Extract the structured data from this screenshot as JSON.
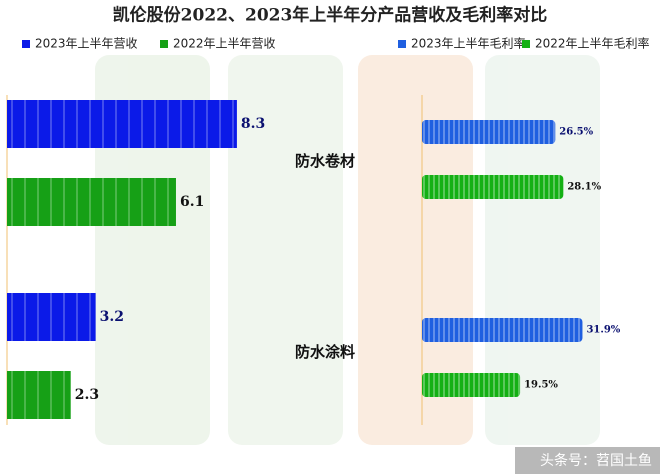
{
  "title": "凯伦股份2022、2023年上半年分产品营收及毛利率对比",
  "watermark": "头条号：苕国土鱼",
  "chart_data": [
    {
      "type": "bar",
      "orientation": "horizontal",
      "categories": [
        "防水卷材",
        "防水涂料"
      ],
      "series": [
        {
          "name": "2023年上半年营收",
          "color": "#0b1ae8",
          "values": [
            8.3,
            3.2
          ]
        },
        {
          "name": "2022年上半年营收",
          "color": "#16a016",
          "values": [
            6.1,
            2.3
          ]
        }
      ]
    },
    {
      "type": "bar",
      "orientation": "horizontal",
      "series": [
        {
          "name": "2023年上半年毛利率",
          "color": "#1f5fe0",
          "values": [
            26.5,
            31.9
          ],
          "value_labels": [
            "26.5%",
            "31.9%"
          ]
        },
        {
          "name": "2022年上半年毛利率",
          "color": "#14b014",
          "values": [
            28.1,
            19.5
          ],
          "value_labels": [
            "28.1%",
            "19.5%"
          ]
        }
      ]
    }
  ]
}
